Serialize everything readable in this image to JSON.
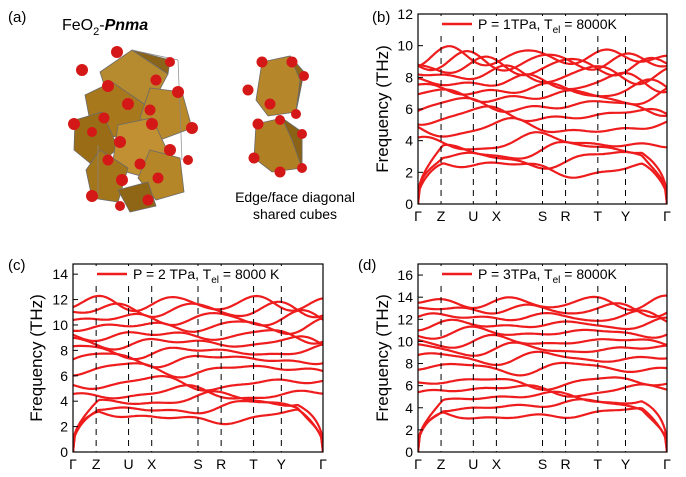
{
  "panel_a": {
    "letter": "(a)",
    "title_formula": "FeO",
    "title_sub": "2",
    "title_sep": "-",
    "title_space_group": "Pnma",
    "caption_line1": "Edge/face diagonal",
    "caption_line2": "shared cubes",
    "colors": {
      "octahedron": "#b07d1e",
      "oxygen": "#d01818",
      "edge": "#6a6a6a"
    }
  },
  "chart_data": [
    {
      "id": "b",
      "type": "line",
      "panel_letter": "(b)",
      "ylabel": "Frequency (THz)",
      "ylim": [
        0,
        12
      ],
      "yticks": [
        0,
        2,
        4,
        6,
        8,
        10,
        12
      ],
      "x_labels": [
        "Γ",
        "Z",
        "U",
        "X",
        "S",
        "R",
        "T",
        "Y",
        "Γ"
      ],
      "x_label_positions": [
        0,
        0.5,
        1.2,
        1.7,
        2.7,
        3.2,
        3.9,
        4.5,
        5.4
      ],
      "legend": {
        "prefix": "P = 1TPa, T",
        "sub": "el",
        "suffix": " = 8000K",
        "placement": "top"
      },
      "line_color": "#ee1c1c",
      "band_levels": [
        2.3,
        2.9,
        3.4,
        3.9,
        4.8,
        5.6,
        6.2,
        6.8,
        7.2,
        7.7,
        8.2,
        8.7,
        9.0,
        9.3
      ]
    },
    {
      "id": "c",
      "type": "line",
      "panel_letter": "(c)",
      "ylabel": "Frequency (THz)",
      "ylim": [
        0,
        14.8
      ],
      "yticks": [
        0,
        2,
        4,
        6,
        8,
        10,
        12,
        14
      ],
      "x_labels": [
        "Γ",
        "Z",
        "U",
        "X",
        "S",
        "R",
        "T",
        "Y",
        "Γ"
      ],
      "x_label_positions": [
        0,
        0.5,
        1.2,
        1.7,
        2.7,
        3.2,
        3.9,
        4.5,
        5.4
      ],
      "legend": {
        "prefix": "P = 2 TPa, T",
        "sub": "el",
        "suffix": " = 8000 K",
        "placement": "top"
      },
      "line_color": "#ee1c1c",
      "band_levels": [
        2.8,
        3.5,
        4.1,
        4.6,
        5.4,
        6.5,
        7.3,
        7.9,
        8.6,
        9.2,
        9.9,
        10.5,
        11.2,
        11.7
      ]
    },
    {
      "id": "d",
      "type": "line",
      "panel_letter": "(d)",
      "ylabel": "Frequency (THz)",
      "ylim": [
        0,
        17
      ],
      "yticks": [
        0,
        2,
        4,
        6,
        8,
        10,
        12,
        14,
        16
      ],
      "x_labels": [
        "Γ",
        "Z",
        "U",
        "X",
        "S",
        "R",
        "T",
        "Y",
        "Γ"
      ],
      "x_label_positions": [
        0,
        0.5,
        1.2,
        1.7,
        2.7,
        3.2,
        3.9,
        4.5,
        5.4
      ],
      "legend": {
        "prefix": "P = 3TPa, T",
        "sub": "el",
        "suffix": " = 8000K",
        "placement": "top"
      },
      "line_color": "#ee1c1c",
      "band_levels": [
        3.4,
        4.2,
        4.9,
        5.6,
        6.3,
        7.6,
        8.5,
        9.3,
        10.0,
        10.8,
        11.5,
        12.2,
        12.9,
        13.5
      ]
    }
  ]
}
